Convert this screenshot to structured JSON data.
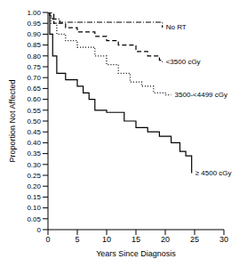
{
  "chart_data": {
    "type": "line",
    "x_label": "Years Since Diagnosis",
    "y_label": "Proportion Not Affected",
    "xlim": [
      0,
      30
    ],
    "xticks": [
      0,
      5,
      10,
      15,
      20,
      25,
      30
    ],
    "ylim": [
      0,
      1
    ],
    "yticks": [
      0,
      0.05,
      {
        "value": 0.1,
        "label": "0.10"
      },
      0.15,
      {
        "value": 0.2,
        "label": "0.20"
      },
      0.25,
      {
        "value": 0.3,
        "label": "0.30"
      },
      0.35,
      {
        "value": 0.4,
        "label": "0.40"
      },
      0.45,
      {
        "value": 0.5,
        "label": "0.50"
      },
      0.55,
      {
        "value": 0.6,
        "label": "0.60"
      },
      0.65,
      {
        "value": 0.7,
        "label": "0.70"
      },
      0.75,
      {
        "value": 0.8,
        "label": "0.80"
      },
      0.85,
      {
        "value": 0.9,
        "label": "0.90"
      },
      0.95,
      {
        "value": 1,
        "label": "1.00"
      }
    ],
    "series": [
      {
        "name": "No RT",
        "color": "#000000",
        "line_style": "dashdot",
        "x": [
          0,
          0.3,
          0.8,
          2,
          19.5,
          19.5
        ],
        "values": [
          1,
          0.98,
          0.97,
          0.955,
          0.955,
          0.93
        ]
      },
      {
        "name": "<3500 cGy",
        "color": "#000000",
        "line_style": "dashed",
        "x": [
          0,
          1,
          3,
          5,
          8,
          10,
          12,
          15,
          17,
          19,
          19.5
        ],
        "values": [
          1,
          0.95,
          0.93,
          0.91,
          0.89,
          0.87,
          0.85,
          0.82,
          0.8,
          0.78,
          0.77
        ]
      },
      {
        "name": "3500-<4499 cGy",
        "color": "#000000",
        "line_style": "dotted",
        "x": [
          0,
          0.5,
          1.5,
          3,
          5,
          8,
          10,
          12,
          14,
          16,
          18,
          20,
          21
        ],
        "values": [
          1,
          0.95,
          0.9,
          0.87,
          0.84,
          0.8,
          0.76,
          0.72,
          0.68,
          0.66,
          0.63,
          0.62,
          0.62
        ]
      },
      {
        "name": "≥ 4500 cGy",
        "color": "#000000",
        "line_style": "solid",
        "x": [
          0,
          0.3,
          0.8,
          1.5,
          3,
          5,
          6,
          7,
          8,
          10,
          13,
          15,
          17,
          19,
          21,
          22.5,
          23.5,
          24.5
        ],
        "values": [
          1,
          0.9,
          0.8,
          0.72,
          0.69,
          0.66,
          0.63,
          0.6,
          0.55,
          0.54,
          0.5,
          0.47,
          0.45,
          0.43,
          0.4,
          0.36,
          0.34,
          0.26
        ]
      }
    ]
  }
}
